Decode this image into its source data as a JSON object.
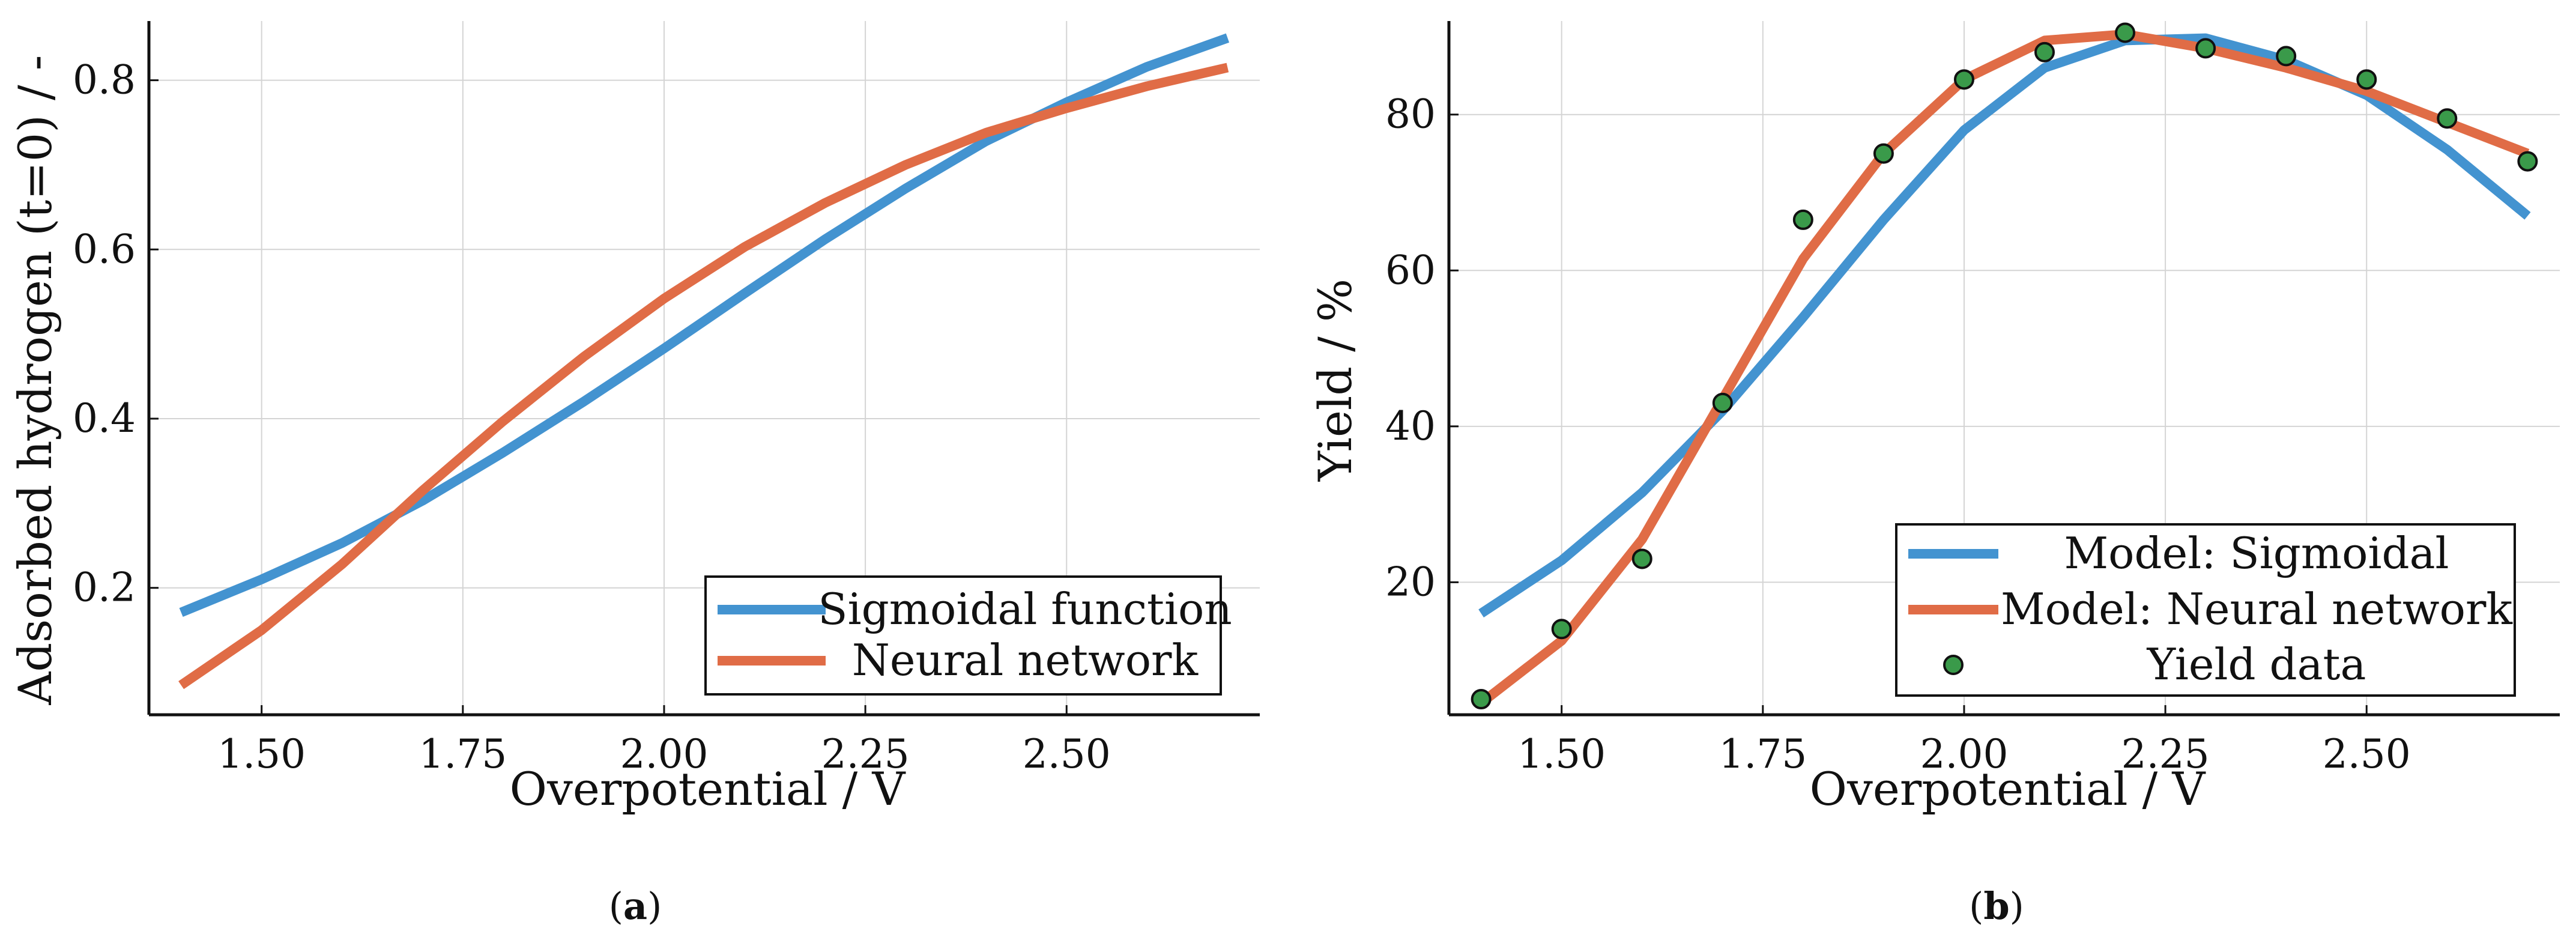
{
  "chart_data": [
    {
      "type": "line",
      "panel_label": "(a)",
      "xlabel": "Overpotential / V",
      "ylabel": "Adsorbed hydrogen (t=0) / -",
      "xlim": [
        1.36,
        2.74
      ],
      "ylim": [
        0.05,
        0.87
      ],
      "xticks": [
        1.5,
        1.75,
        2.0,
        2.25,
        2.5
      ],
      "xtick_labels": [
        "1.50",
        "1.75",
        "2.00",
        "2.25",
        "2.50"
      ],
      "yticks": [
        0.2,
        0.4,
        0.6,
        0.8
      ],
      "ytick_labels": [
        "0.2",
        "0.4",
        "0.6",
        "0.8"
      ],
      "grid": true,
      "legend_position": "bottom-right",
      "series": [
        {
          "name": "Sigmoidal function",
          "color": "#4393d0",
          "x": [
            1.4,
            1.5,
            1.6,
            1.7,
            1.8,
            1.9,
            2.0,
            2.1,
            2.2,
            2.3,
            2.4,
            2.5,
            2.6,
            2.7
          ],
          "y": [
            0.171,
            0.21,
            0.253,
            0.303,
            0.36,
            0.42,
            0.483,
            0.548,
            0.612,
            0.672,
            0.728,
            0.774,
            0.816,
            0.85
          ]
        },
        {
          "name": "Neural network",
          "color": "#e06c46",
          "x": [
            1.4,
            1.5,
            1.6,
            1.7,
            1.8,
            1.9,
            2.0,
            2.1,
            2.2,
            2.3,
            2.4,
            2.5,
            2.6,
            2.7
          ],
          "y": [
            0.085,
            0.15,
            0.228,
            0.315,
            0.397,
            0.473,
            0.542,
            0.603,
            0.655,
            0.7,
            0.738,
            0.767,
            0.793,
            0.815
          ]
        }
      ]
    },
    {
      "type": "line",
      "panel_label": "(b)",
      "xlabel": "Overpotential / V",
      "ylabel": "Yield / %",
      "xlim": [
        1.36,
        2.74
      ],
      "ylim": [
        3,
        92
      ],
      "xticks": [
        1.5,
        1.75,
        2.0,
        2.25,
        2.5
      ],
      "xtick_labels": [
        "1.50",
        "1.75",
        "2.00",
        "2.25",
        "2.50"
      ],
      "yticks": [
        20,
        40,
        60,
        80
      ],
      "ytick_labels": [
        "20",
        "40",
        "60",
        "80"
      ],
      "grid": true,
      "legend_position": "bottom-right",
      "series": [
        {
          "name": "Model: Sigmoidal",
          "color": "#4393d0",
          "kind": "line",
          "x": [
            1.4,
            1.5,
            1.6,
            1.7,
            1.8,
            1.9,
            2.0,
            2.1,
            2.2,
            2.3,
            2.4,
            2.5,
            2.6,
            2.7
          ],
          "y": [
            16.0,
            22.8,
            31.5,
            42.0,
            54.0,
            66.5,
            78.0,
            86.0,
            89.5,
            89.8,
            87.0,
            82.5,
            75.5,
            67.0
          ]
        },
        {
          "name": "Model: Neural network",
          "color": "#e06c46",
          "kind": "line",
          "x": [
            1.4,
            1.5,
            1.6,
            1.7,
            1.8,
            1.9,
            2.0,
            2.1,
            2.2,
            2.3,
            2.4,
            2.5,
            2.6,
            2.7
          ],
          "y": [
            4.5,
            12.5,
            25.5,
            43.5,
            61.5,
            75.0,
            84.5,
            89.5,
            90.3,
            88.5,
            86.0,
            83.0,
            79.0,
            75.0
          ]
        },
        {
          "name": "Yield data",
          "color": "#3a9a4a",
          "kind": "scatter",
          "x": [
            1.4,
            1.5,
            1.6,
            1.7,
            1.8,
            1.9,
            2.0,
            2.1,
            2.2,
            2.3,
            2.4,
            2.5,
            2.6,
            2.7
          ],
          "y": [
            5.0,
            14.0,
            23.0,
            43.0,
            66.5,
            75.0,
            84.5,
            88.0,
            90.5,
            88.5,
            87.5,
            84.5,
            79.5,
            74.0
          ]
        }
      ]
    }
  ]
}
